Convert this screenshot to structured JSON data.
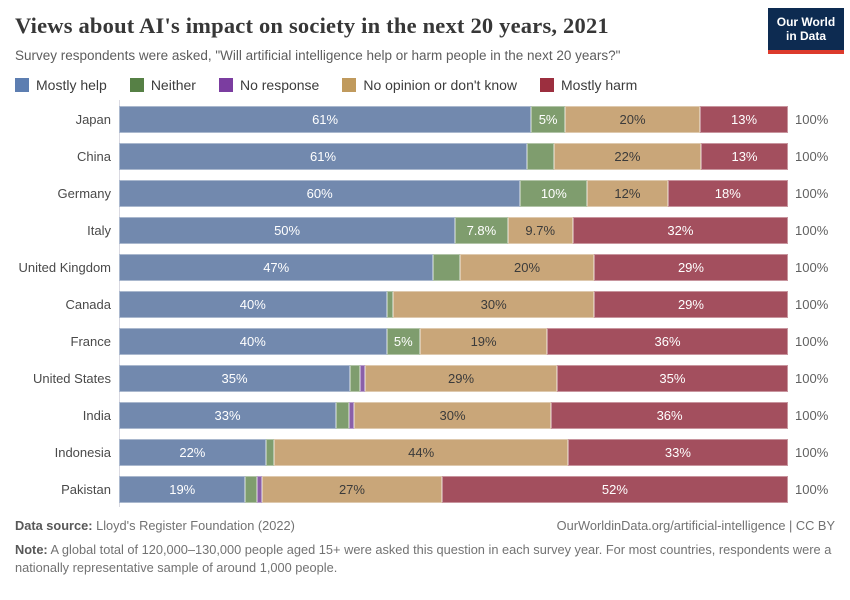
{
  "header": {
    "title": "Views about AI's impact on society in the next 20 years, 2021",
    "subtitle": "Survey respondents were asked, \"Will artificial intelligence help or harm people in the next 20 years?\"",
    "logo": {
      "line1": "Our World",
      "line2": "in Data",
      "bg_color": "#0d2b51",
      "stripe_color": "#dc3a2c"
    }
  },
  "chart_data": {
    "type": "bar",
    "stacked": true,
    "orientation": "horizontal",
    "xlim": [
      0,
      100
    ],
    "grid": false,
    "legend_position": "top",
    "row_total_label": "100%",
    "categories": [
      {
        "key": "mostly-help",
        "label": "Mostly help",
        "legend_color": "#5d7eb1",
        "bar_color": "#7289ae",
        "label_color": "#ffffff"
      },
      {
        "key": "neither",
        "label": "Neither",
        "legend_color": "#568045",
        "bar_color": "#7f9d6e",
        "label_color": "#ffffff"
      },
      {
        "key": "no-response",
        "label": "No response",
        "legend_color": "#7b3da0",
        "bar_color": "#8a5fa8",
        "label_color": "#ffffff"
      },
      {
        "key": "no-opinion",
        "label": "No opinion or don't know",
        "legend_color": "#c09a5d",
        "bar_color": "#c9a679",
        "label_color": "#3b3b3b"
      },
      {
        "key": "mostly-harm",
        "label": "Mostly harm",
        "legend_color": "#9c2f3f",
        "bar_color": "#a34f5e",
        "label_color": "#ffffff"
      }
    ],
    "rows": [
      {
        "country": "Japan",
        "values": [
          61,
          5,
          0,
          20,
          13
        ],
        "labels": [
          "61%",
          "5%",
          "",
          "20%",
          "13%"
        ]
      },
      {
        "country": "China",
        "values": [
          61,
          4,
          0,
          22,
          13
        ],
        "labels": [
          "61%",
          "",
          "",
          "22%",
          "13%"
        ]
      },
      {
        "country": "Germany",
        "values": [
          60,
          10,
          0,
          12,
          18
        ],
        "labels": [
          "60%",
          "10%",
          "",
          "12%",
          "18%"
        ]
      },
      {
        "country": "Italy",
        "values": [
          50,
          7.8,
          0,
          9.7,
          32
        ],
        "labels": [
          "50%",
          "7.8%",
          "",
          "9.7%",
          "32%"
        ]
      },
      {
        "country": "United Kingdom",
        "values": [
          47,
          4,
          0,
          20,
          29
        ],
        "labels": [
          "47%",
          "",
          "",
          "20%",
          "29%"
        ]
      },
      {
        "country": "Canada",
        "values": [
          40,
          1,
          0,
          30,
          29
        ],
        "labels": [
          "40%",
          "",
          "",
          "30%",
          "29%"
        ]
      },
      {
        "country": "France",
        "values": [
          40,
          5,
          0,
          19,
          36
        ],
        "labels": [
          "40%",
          "5%",
          "",
          "19%",
          "36%"
        ]
      },
      {
        "country": "United States",
        "values": [
          35,
          1.5,
          0.8,
          29,
          35
        ],
        "labels": [
          "35%",
          "",
          "",
          "29%",
          "35%"
        ]
      },
      {
        "country": "India",
        "values": [
          33,
          2,
          0.7,
          30,
          36
        ],
        "labels": [
          "33%",
          "",
          "",
          "30%",
          "36%"
        ]
      },
      {
        "country": "Indonesia",
        "values": [
          22,
          1.3,
          0,
          44,
          33
        ],
        "labels": [
          "22%",
          "",
          "",
          "44%",
          "33%"
        ]
      },
      {
        "country": "Pakistan",
        "values": [
          19,
          1.8,
          0.7,
          27,
          52
        ],
        "labels": [
          "19%",
          "",
          "",
          "27%",
          "52%"
        ]
      }
    ]
  },
  "footer": {
    "source_bold": "Data source:",
    "source_text": " Lloyd's Register Foundation (2022)",
    "link": "OurWorldinData.org/artificial-intelligence | CC BY",
    "note_bold": "Note:",
    "note_text": " A global total of 120,000–130,000 people aged 15+ were asked this question in each survey year. For most countries, respondents were a nationally representative sample of around 1,000 people."
  }
}
